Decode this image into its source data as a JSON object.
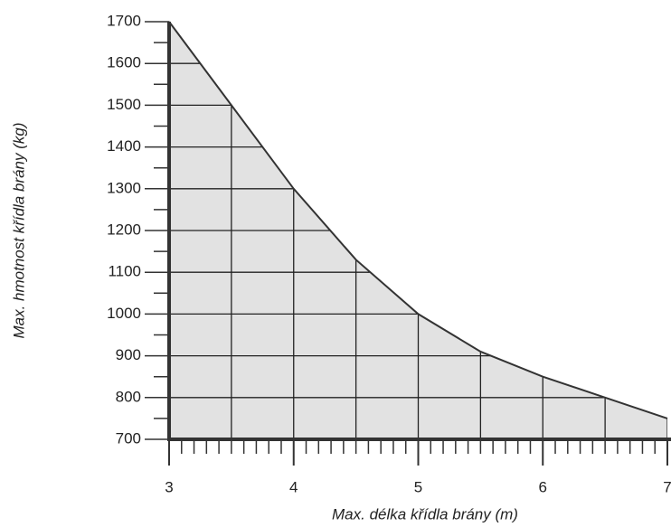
{
  "chart_data": {
    "type": "area",
    "xlabel": "Max. délka křídla brány (m)",
    "ylabel": "Max. hmotnost křídla brány (kg)",
    "x": [
      3,
      3.5,
      4,
      4.5,
      5,
      5.5,
      6,
      6.5,
      7
    ],
    "values": [
      1700,
      1500,
      1300,
      1130,
      1000,
      910,
      850,
      800,
      750
    ],
    "color": "#e2e2e2",
    "line_color": "#333333",
    "xlim": [
      3,
      7
    ],
    "ylim": [
      700,
      1700
    ],
    "xticks": [
      3,
      4,
      5,
      6,
      7
    ],
    "yticks": [
      700,
      800,
      900,
      1000,
      1100,
      1200,
      1300,
      1400,
      1500,
      1600,
      1700
    ],
    "grid": true
  }
}
